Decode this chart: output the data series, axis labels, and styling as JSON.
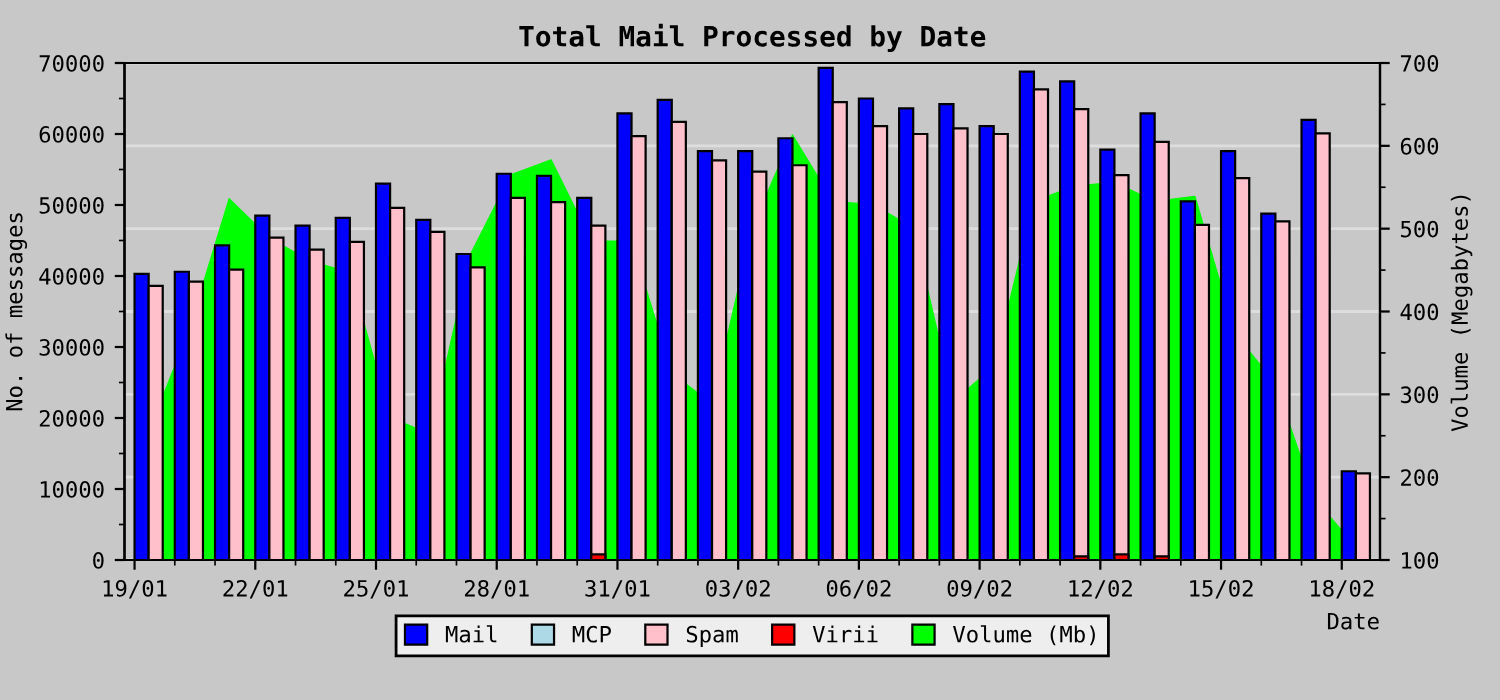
{
  "chart_data": {
    "type": "bar",
    "title": "Total Mail Processed by Date",
    "xlabel": "Date",
    "ylabel": "No. of messages",
    "y2label": "Volume (Megabytes)",
    "categories": [
      "19/01",
      null,
      null,
      "22/01",
      null,
      null,
      "25/01",
      null,
      null,
      "28/01",
      null,
      null,
      "31/01",
      null,
      null,
      "03/02",
      null,
      null,
      "06/02",
      null,
      null,
      "09/02",
      null,
      null,
      "12/02",
      null,
      null,
      "15/02",
      null,
      null,
      "18/02"
    ],
    "series": [
      {
        "name": "Volume (Mb)",
        "type": "area",
        "axis": "y2",
        "color": "#00ff00",
        "values": [
          254,
          377,
          536,
          489,
          461,
          447,
          272,
          252,
          469,
          565,
          583,
          485,
          485,
          325,
          289,
          501,
          613,
          533,
          529,
          501,
          292,
          333,
          533,
          551,
          556,
          533,
          539,
          373,
          313,
          172,
          116
        ]
      },
      {
        "name": "Mail",
        "color": "#0000ff",
        "values": [
          40300,
          40600,
          44300,
          48500,
          47100,
          48200,
          53000,
          47900,
          43100,
          54400,
          54100,
          51000,
          62900,
          64800,
          57600,
          57600,
          59400,
          69300,
          65000,
          63600,
          64200,
          61100,
          68800,
          67400,
          57800,
          62900,
          50500,
          57600,
          48800,
          62000,
          12500
        ]
      },
      {
        "name": "MCP",
        "color": "#add8e6",
        "values": [
          0,
          0,
          0,
          0,
          0,
          0,
          0,
          0,
          0,
          0,
          0,
          0,
          0,
          0,
          0,
          0,
          0,
          0,
          0,
          0,
          0,
          0,
          0,
          0,
          0,
          0,
          0,
          0,
          0,
          0,
          0
        ]
      },
      {
        "name": "Spam",
        "color": "#ffc0cb",
        "values": [
          38600,
          39200,
          40900,
          45400,
          43700,
          44800,
          49600,
          46200,
          41200,
          51000,
          50400,
          47100,
          59700,
          61700,
          56300,
          54700,
          55600,
          64500,
          61100,
          60000,
          60800,
          60000,
          66300,
          63500,
          54200,
          58900,
          47200,
          53800,
          47700,
          60100,
          12200
        ]
      },
      {
        "name": "Virii",
        "color": "#ff0000",
        "values": [
          0,
          0,
          0,
          0,
          0,
          0,
          0,
          0,
          0,
          0,
          0,
          800,
          0,
          0,
          0,
          0,
          0,
          0,
          0,
          0,
          0,
          0,
          0,
          500,
          800,
          500,
          0,
          0,
          0,
          0,
          0
        ]
      }
    ],
    "ylim": [
      0,
      70000
    ],
    "yticks": [
      0,
      10000,
      20000,
      30000,
      40000,
      50000,
      60000,
      70000
    ],
    "y2lim": [
      100,
      700
    ],
    "y2ticks": [
      100,
      200,
      300,
      400,
      500,
      600,
      700
    ],
    "grid": "y",
    "legend": "bottom"
  }
}
